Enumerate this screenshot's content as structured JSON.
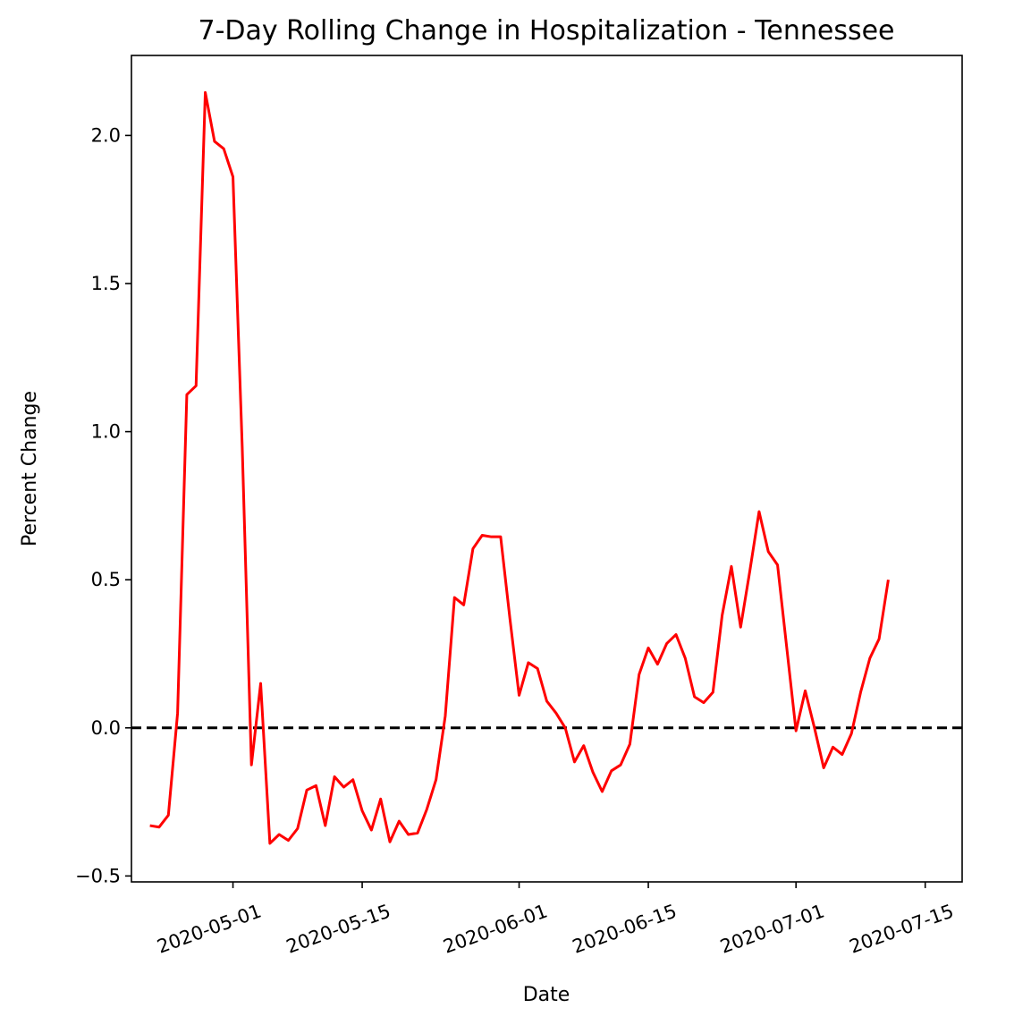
{
  "chart_data": {
    "type": "line",
    "title": "7-Day Rolling Change in Hospitalization - Tennessee",
    "xlabel": "Date",
    "ylabel": "Percent Change",
    "x_start": "2020-04-22",
    "xlim": [
      "2020-04-20",
      "2020-07-19"
    ],
    "ylim": [
      -0.52,
      2.27
    ],
    "x_ticks": [
      "2020-05-01",
      "2020-05-15",
      "2020-06-01",
      "2020-06-15",
      "2020-07-01",
      "2020-07-15"
    ],
    "y_ticks": [
      -0.5,
      0.0,
      0.5,
      1.0,
      1.5,
      2.0
    ],
    "y_tick_labels": [
      "−0.5",
      "0.0",
      "0.5",
      "1.0",
      "1.5",
      "2.0"
    ],
    "grid": false,
    "reference_line": {
      "y": 0.0,
      "style": "dashed",
      "color": "#000000"
    },
    "series": [
      {
        "color": "#ff0000",
        "values": [
          -0.33,
          -0.335,
          -0.295,
          0.05,
          1.125,
          1.155,
          2.145,
          1.98,
          1.955,
          1.86,
          0.95,
          -0.125,
          0.15,
          -0.39,
          -0.36,
          -0.38,
          -0.34,
          -0.21,
          -0.195,
          -0.33,
          -0.165,
          -0.2,
          -0.175,
          -0.28,
          -0.345,
          -0.24,
          -0.385,
          -0.315,
          -0.36,
          -0.355,
          -0.275,
          -0.175,
          0.04,
          0.44,
          0.415,
          0.605,
          0.65,
          0.645,
          0.645,
          0.37,
          0.11,
          0.22,
          0.2,
          0.09,
          0.05,
          0.0,
          -0.115,
          -0.06,
          -0.15,
          -0.215,
          -0.145,
          -0.125,
          -0.055,
          0.18,
          0.27,
          0.215,
          0.285,
          0.315,
          0.235,
          0.105,
          0.085,
          0.12,
          0.38,
          0.545,
          0.34,
          0.53,
          0.73,
          0.595,
          0.55,
          0.27,
          -0.01,
          0.125,
          0.0,
          -0.135,
          -0.065,
          -0.09,
          -0.02,
          0.12,
          0.235,
          0.3,
          0.5
        ]
      }
    ]
  }
}
